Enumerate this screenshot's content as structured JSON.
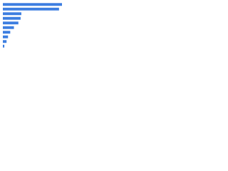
{
  "chart_data": {
    "type": "bar",
    "orientation": "horizontal",
    "categories": [
      null,
      null,
      null,
      null,
      null,
      null,
      null,
      null,
      null,
      null
    ],
    "values": [
      80,
      76,
      25,
      24,
      21,
      15,
      10,
      7,
      5,
      2
    ],
    "color": "#3d7ee0"
  }
}
